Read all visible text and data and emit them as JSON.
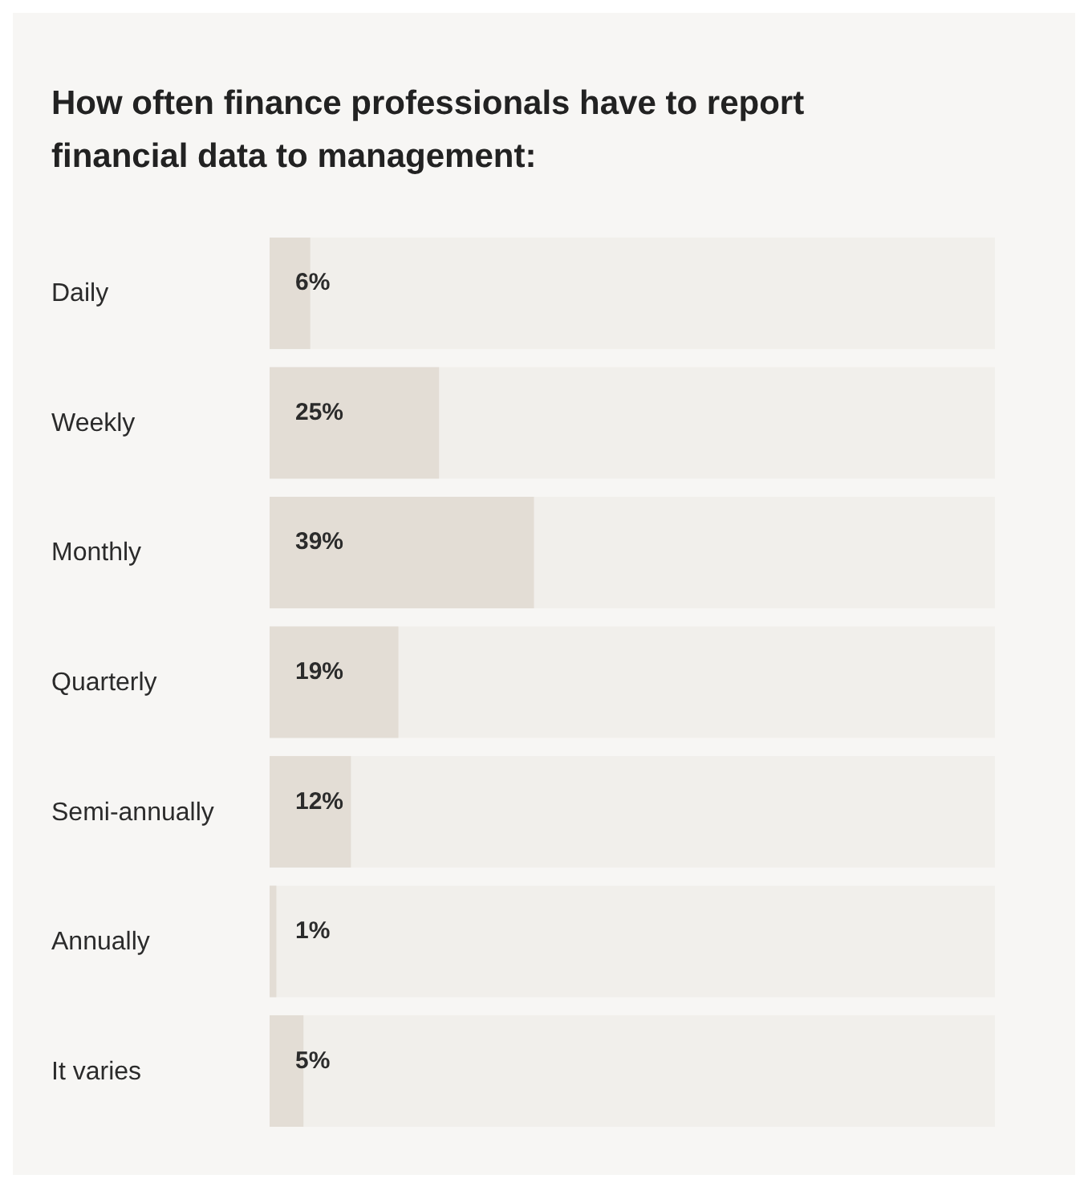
{
  "chart_data": {
    "type": "bar",
    "orientation": "horizontal",
    "title": "How often finance professionals have to report financial data to management:",
    "categories": [
      "Daily",
      "Weekly",
      "Monthly",
      "Quarterly",
      "Semi-annually",
      "Annually",
      "It varies"
    ],
    "values": [
      6,
      25,
      39,
      19,
      12,
      1,
      5
    ],
    "value_labels": [
      "6%",
      "25%",
      "39%",
      "19%",
      "12%",
      "1%",
      "5%"
    ],
    "color": "#e3ddd5",
    "tick_labels": "y"
  }
}
